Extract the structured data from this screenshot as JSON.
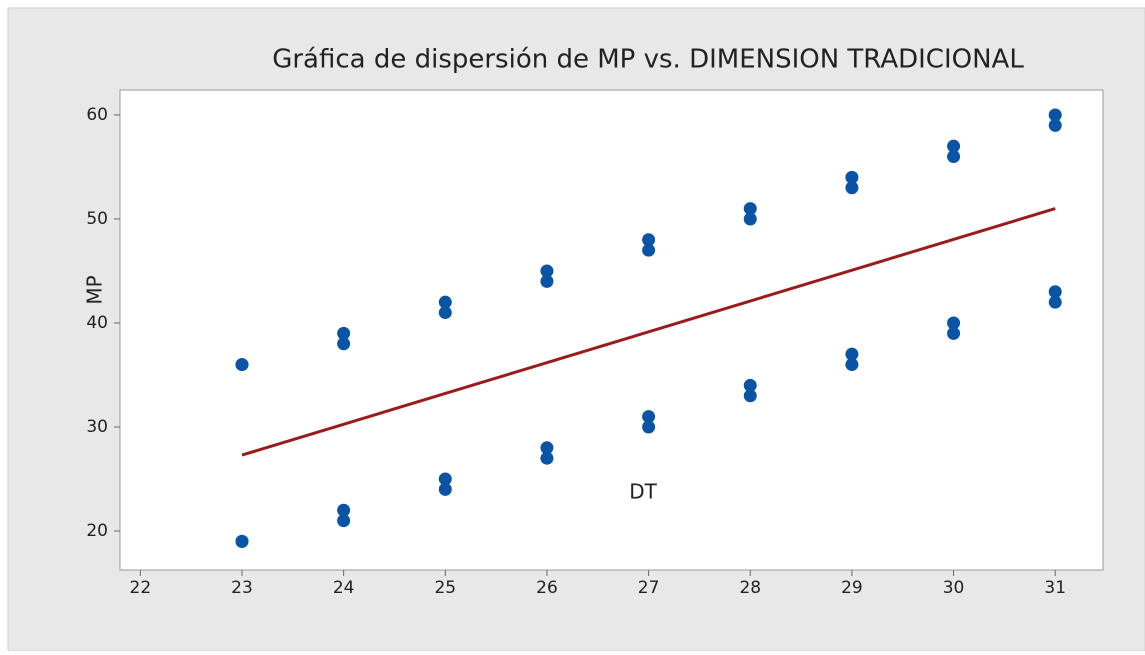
{
  "chart_data": {
    "type": "scatter",
    "title": "Gráfica de dispersión de MP vs. DIMENSION TRADICIONAL",
    "x_label": "DT",
    "y_label": "MP",
    "x": [
      23,
      23,
      23,
      23,
      24,
      24,
      24,
      24,
      25,
      25,
      25,
      25,
      26,
      26,
      26,
      26,
      27,
      27,
      27,
      27,
      28,
      28,
      28,
      28,
      29,
      29,
      29,
      29,
      30,
      30,
      30,
      30,
      31,
      31,
      31,
      31
    ],
    "values": [
      36,
      36,
      19,
      19,
      39,
      38,
      22,
      21,
      42,
      41,
      25,
      24,
      45,
      44,
      28,
      27,
      48,
      47,
      31,
      30,
      51,
      50,
      34,
      33,
      54,
      53,
      37,
      36,
      57,
      56,
      40,
      39,
      60,
      59,
      43,
      42
    ],
    "color": "#0a54a5",
    "fit_line": {
      "x": [
        23,
        31
      ],
      "values": [
        27.3,
        51
      ],
      "color": "#9b1b1b"
    },
    "xlim": [
      21.8,
      31.47
    ],
    "xticks": [
      22,
      23,
      24,
      25,
      26,
      27,
      28,
      29,
      30,
      31
    ],
    "ylim": [
      16.25,
      62.4
    ],
    "yticks": [
      20,
      30,
      40,
      50,
      60
    ]
  }
}
